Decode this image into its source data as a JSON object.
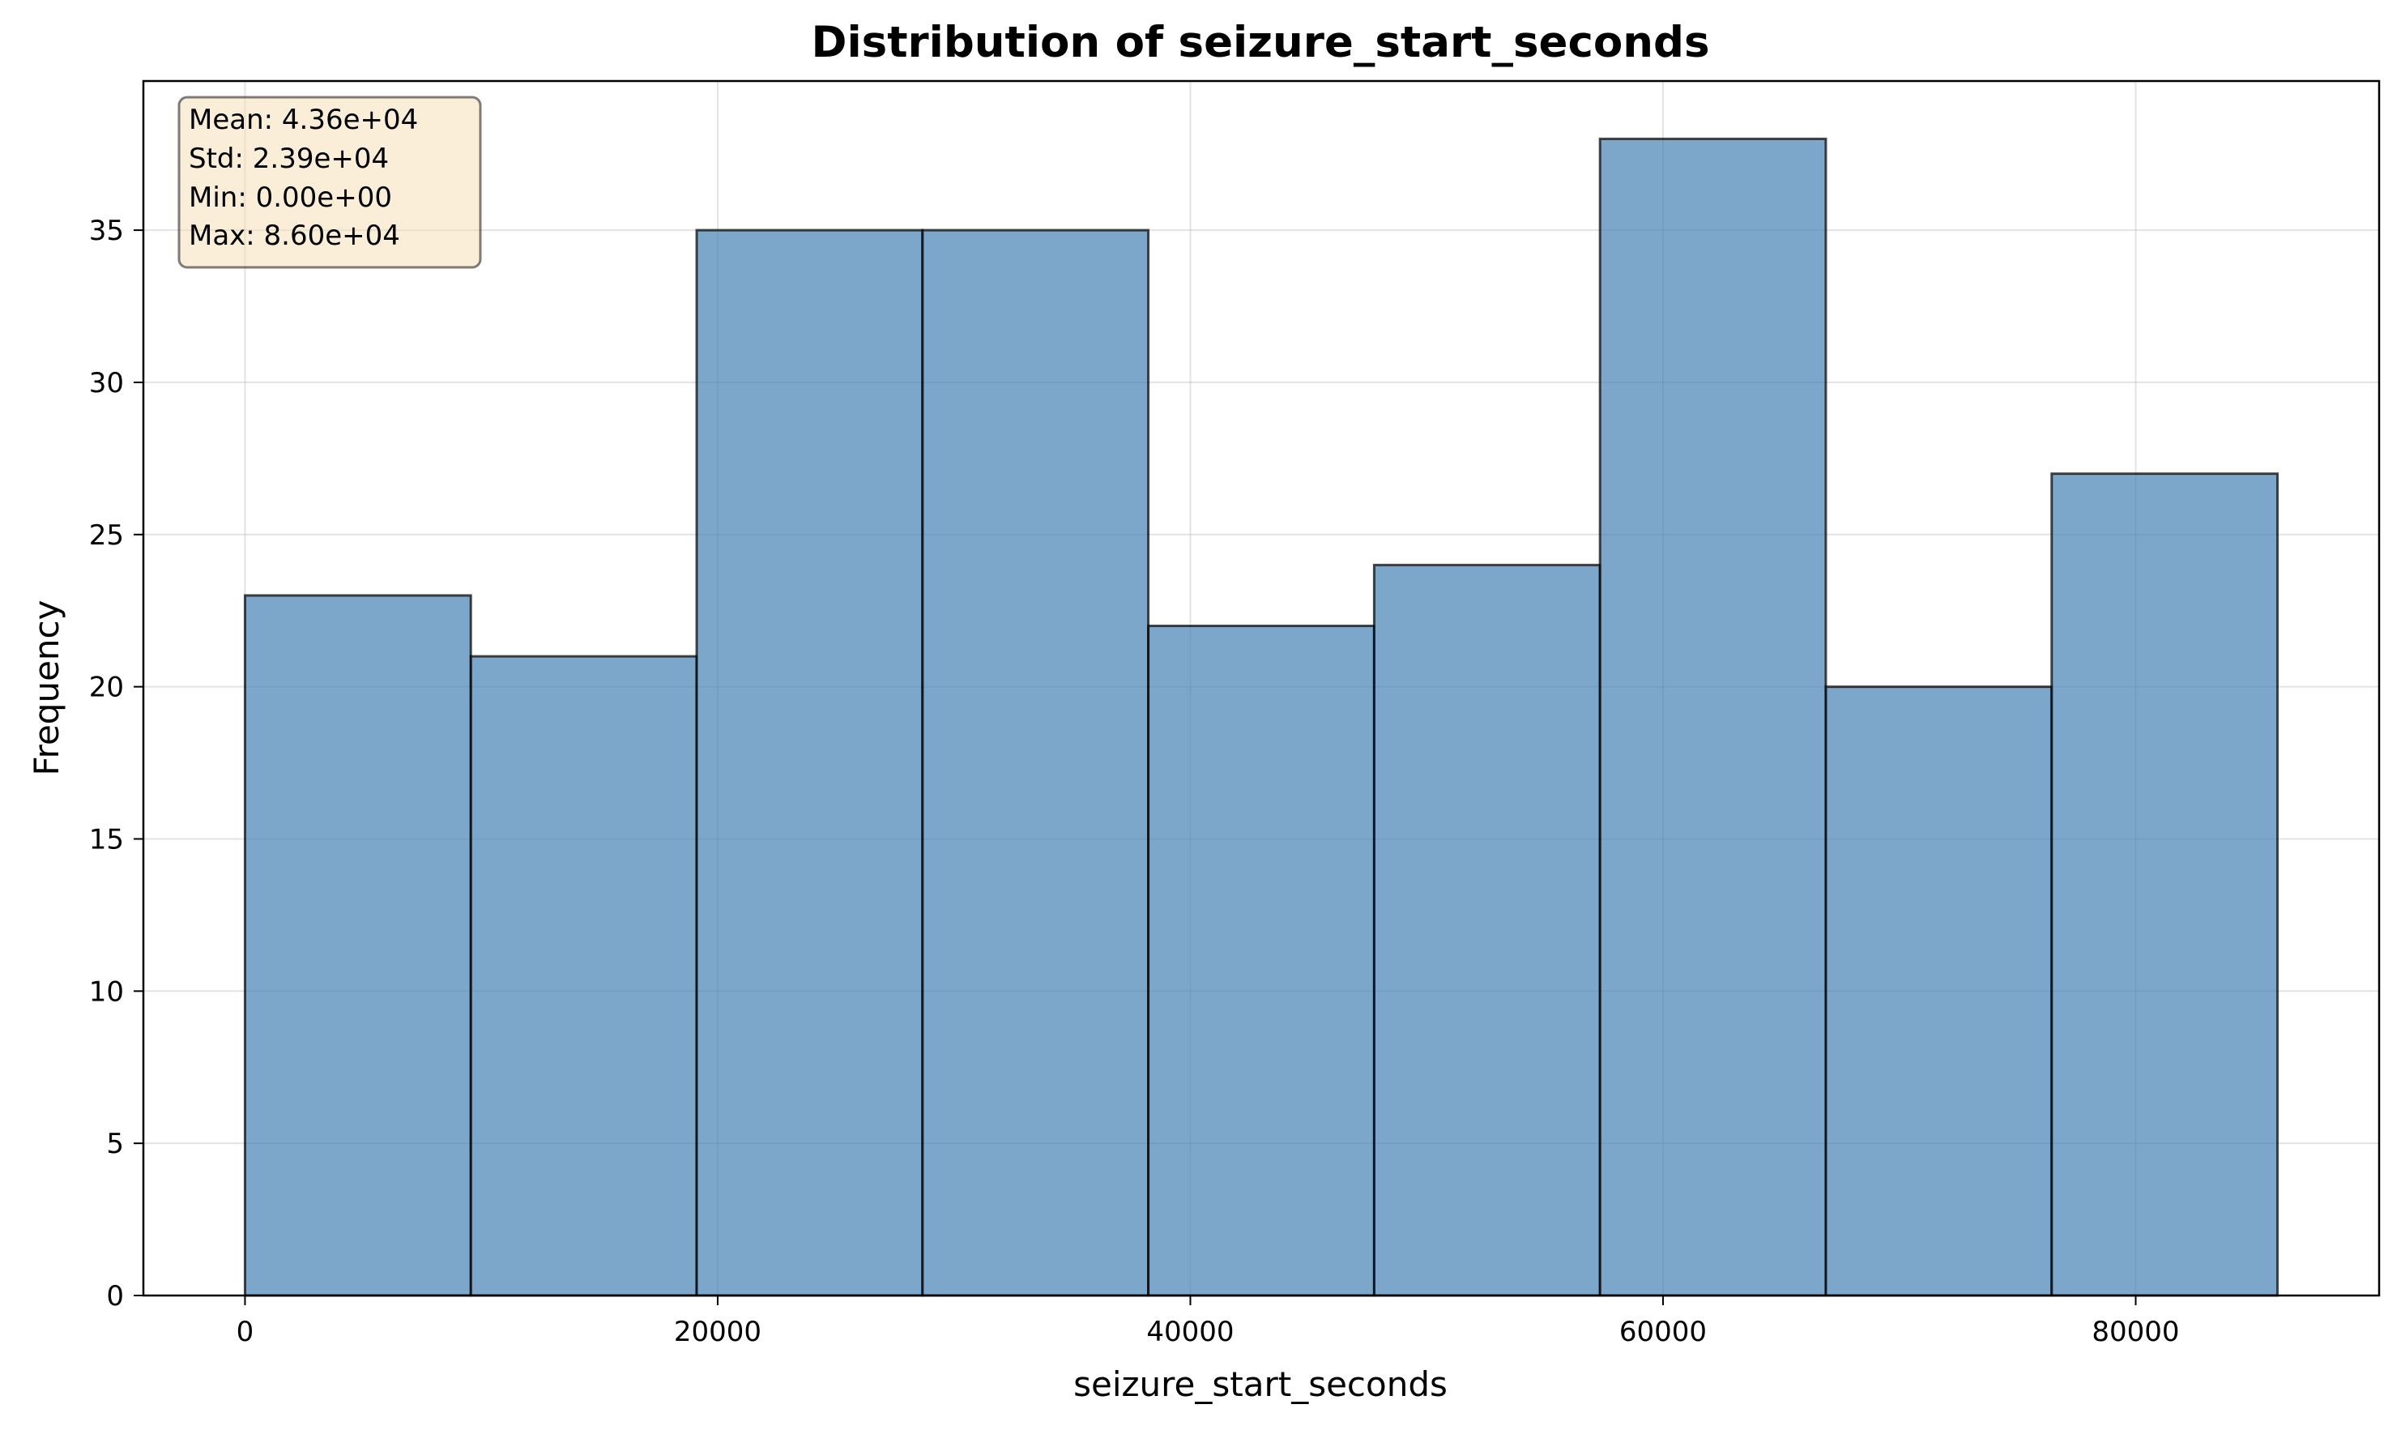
{
  "chart_data": {
    "type": "bar",
    "histogram": true,
    "title": "Distribution of seizure_start_seconds",
    "xlabel": "seizure_start_seconds",
    "ylabel": "Frequency",
    "bin_edges": [
      0,
      9555.6,
      19111.1,
      28666.7,
      38222.2,
      47777.8,
      57333.3,
      66888.9,
      76444.4,
      86000
    ],
    "values": [
      23,
      21,
      35,
      35,
      22,
      24,
      38,
      20,
      27
    ],
    "xlim": [
      -4300,
      90300
    ],
    "ylim": [
      0,
      39.9
    ],
    "xticks": [
      0,
      20000,
      40000,
      60000,
      80000
    ],
    "xtick_labels": [
      "0",
      "20000",
      "40000",
      "60000",
      "80000"
    ],
    "yticks": [
      0,
      5,
      10,
      15,
      20,
      25,
      30,
      35
    ],
    "ytick_labels": [
      "0",
      "5",
      "10",
      "15",
      "20",
      "25",
      "30",
      "35"
    ],
    "grid": true,
    "bar_color": "#4682b4",
    "stats_box": {
      "lines": [
        "Mean: 4.36e+04",
        "Std: 2.39e+04",
        "Min: 0.00e+00",
        "Max: 8.60e+04"
      ],
      "placement": "top-left",
      "background": "#f5deb3"
    }
  }
}
